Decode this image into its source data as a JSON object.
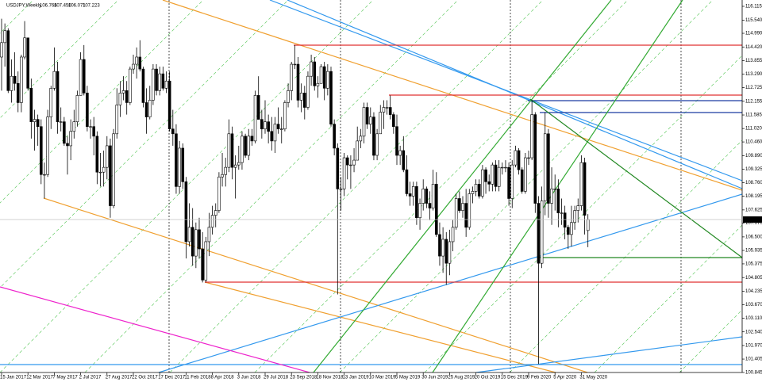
{
  "chart_data": {
    "type": "candlestick",
    "symbol": "USDJPY,Weekly",
    "header_labels": [
      "106.766",
      "107.450",
      "106.071",
      "107.223"
    ],
    "up_color": "#ffffff",
    "down_color": "#000000",
    "ylim": [
      100.845,
      116.379
    ],
    "yticks": [
      116.115,
      {
        "value": 115.54,
        "label": "115.540"
      },
      {
        "value": 114.99,
        "label": "114.990"
      },
      {
        "value": 114.42,
        "label": "114.420"
      },
      113.855,
      {
        "value": 113.29,
        "label": "113.290"
      },
      112.725,
      112.155,
      111.585,
      {
        "value": 111.02,
        "label": "111.020"
      },
      {
        "value": 110.46,
        "label": "110.460"
      },
      {
        "value": 109.89,
        "label": "109.890"
      },
      109.325,
      {
        "value": 108.76,
        "label": "108.760"
      },
      108.195,
      107.625,
      {
        "value": 107.07,
        "label": "107.070"
      },
      {
        "value": 106.5,
        "label": "106.500"
      },
      105.935,
      105.375,
      104.805,
      104.235,
      {
        "value": 103.67,
        "label": "103.670"
      },
      {
        "value": 103.11,
        "label": "103.110"
      },
      {
        "value": 102.54,
        "label": "102.540"
      },
      {
        "value": 101.97,
        "label": "101.970"
      },
      101.405,
      100.845
    ],
    "categories": [
      "15 Jan 2017",
      null,
      null,
      null,
      null,
      null,
      null,
      null,
      "12 Mar 2017",
      null,
      null,
      null,
      null,
      null,
      null,
      null,
      "7 May 2017",
      null,
      null,
      null,
      null,
      null,
      null,
      null,
      "2 Jul 2017",
      null,
      null,
      null,
      null,
      null,
      null,
      null,
      "27 Aug 2017",
      null,
      null,
      null,
      null,
      null,
      null,
      null,
      "22 Oct 2017",
      null,
      null,
      null,
      null,
      null,
      null,
      null,
      "17 Dec 2017",
      null,
      null,
      null,
      null,
      null,
      null,
      null,
      "11 Feb 2018",
      null,
      null,
      null,
      null,
      null,
      null,
      null,
      "8 Apr 2018",
      null,
      null,
      null,
      null,
      null,
      null,
      null,
      "3 Jun 2018",
      null,
      null,
      null,
      null,
      null,
      null,
      null,
      "29 Jul 2018",
      null,
      null,
      null,
      null,
      null,
      null,
      null,
      "23 Sep 2018",
      null,
      null,
      null,
      null,
      null,
      null,
      null,
      "18 Nov 2018",
      null,
      null,
      null,
      null,
      null,
      null,
      null,
      "13 Jan 2019",
      null,
      null,
      null,
      null,
      null,
      null,
      null,
      "10 Mar 2019",
      null,
      null,
      null,
      null,
      null,
      null,
      null,
      "5 May 2019",
      null,
      null,
      null,
      null,
      null,
      null,
      null,
      "30 Jun 2019",
      null,
      null,
      null,
      null,
      null,
      null,
      null,
      "25 Aug 2019",
      null,
      null,
      null,
      null,
      null,
      null,
      null,
      "20 Oct 2019",
      null,
      null,
      null,
      null,
      null,
      null,
      null,
      "15 Dec 2019",
      null,
      null,
      null,
      null,
      null,
      null,
      null,
      "9 Feb 2020",
      null,
      null,
      null,
      null,
      null,
      null,
      null,
      "5 Apr 2020",
      null,
      null,
      null,
      null,
      null,
      null,
      null,
      "31 May 2020",
      null,
      null
    ],
    "open": [
      114.0,
      114.6,
      115.1,
      112.6,
      113.2,
      112.9,
      112.1,
      114.0,
      114.8,
      112.7,
      111.3,
      111.4,
      111.1,
      109.1,
      109.1,
      111.5,
      112.7,
      113.4,
      111.3,
      111.3,
      110.4,
      110.3,
      110.9,
      111.3,
      112.4,
      113.9,
      112.5,
      111.1,
      111.1,
      110.7,
      109.2,
      109.2,
      109.4,
      110.3,
      107.8,
      110.8,
      112.0,
      112.5,
      112.6,
      112.1,
      113.5,
      113.7,
      114.0,
      113.5,
      112.1,
      111.5,
      112.2,
      113.5,
      112.6,
      113.3,
      112.7,
      113.0,
      111.0,
      110.8,
      108.6,
      110.2,
      108.8,
      106.3,
      106.9,
      105.7,
      106.8,
      106.0,
      104.7,
      106.3,
      106.9,
      107.4,
      107.6,
      109.0,
      109.1,
      109.4,
      110.8,
      109.4,
      109.5,
      109.6,
      110.7,
      109.9,
      110.7,
      110.5,
      112.4,
      111.4,
      111.0,
      111.3,
      110.9,
      110.5,
      111.2,
      111.0,
      111.0,
      112.1,
      112.6,
      113.7,
      113.7,
      112.2,
      112.5,
      111.9,
      113.2,
      113.8,
      112.8,
      112.9,
      113.6,
      112.7,
      113.4,
      111.2,
      110.2,
      108.5,
      108.5,
      109.8,
      109.5,
      109.5,
      109.7,
      110.5,
      110.7,
      111.9,
      111.2,
      111.5,
      109.9,
      110.8,
      111.7,
      111.9,
      111.9,
      111.6,
      111.1,
      109.9,
      110.1,
      109.3,
      108.3,
      108.2,
      108.6,
      107.3,
      107.9,
      108.5,
      107.9,
      107.7,
      108.7,
      106.6,
      105.7,
      106.4,
      105.4,
      106.3,
      106.9,
      108.1,
      107.6,
      107.9,
      106.9,
      108.3,
      108.4,
      108.7,
      108.2,
      109.3,
      108.8,
      108.7,
      109.5,
      108.6,
      109.4,
      109.4,
      109.4,
      108.1,
      109.5,
      110.1,
      109.3,
      108.4,
      109.8,
      109.8,
      111.6,
      107.9,
      105.4,
      108.0,
      110.8,
      107.9,
      108.5,
      108.5,
      107.5,
      107.5,
      106.9,
      106.6,
      107.1,
      107.6,
      107.8,
      109.6,
      106.766
    ],
    "high": [
      115.6,
      115.4,
      115.2,
      113.9,
      114.2,
      113.4,
      114.1,
      115.5,
      114.8,
      113.1,
      111.8,
      111.6,
      111.4,
      109.6,
      111.8,
      112.8,
      114.4,
      113.8,
      111.9,
      111.5,
      110.7,
      111.4,
      111.8,
      112.6,
      114.2,
      114.5,
      112.8,
      111.4,
      111.5,
      110.9,
      110.0,
      110.1,
      110.7,
      110.6,
      111.0,
      112.7,
      113.0,
      113.2,
      113.0,
      113.6,
      114.1,
      114.4,
      114.7,
      113.6,
      112.7,
      112.8,
      113.7,
      113.7,
      113.6,
      113.6,
      113.4,
      113.4,
      111.8,
      111.2,
      110.5,
      110.4,
      109.0,
      107.9,
      107.7,
      107.1,
      107.3,
      106.7,
      106.5,
      107.5,
      107.8,
      107.9,
      109.2,
      110.0,
      109.8,
      111.4,
      111.1,
      109.9,
      110.3,
      110.9,
      110.8,
      111.0,
      111.0,
      112.6,
      113.2,
      111.8,
      112.2,
      111.6,
      111.5,
      111.5,
      111.9,
      111.5,
      112.2,
      112.9,
      113.8,
      114.5,
      114.0,
      112.9,
      112.8,
      113.4,
      114.1,
      114.0,
      113.2,
      113.7,
      113.8,
      113.7,
      113.6,
      111.4,
      110.4,
      109.0,
      110.0,
      109.9,
      109.9,
      110.2,
      111.1,
      111.0,
      112.1,
      112.1,
      111.9,
      111.7,
      111.0,
      112.0,
      112.2,
      112.2,
      112.4,
      111.7,
      111.6,
      110.3,
      110.7,
      109.9,
      108.8,
      108.8,
      108.8,
      108.1,
      108.9,
      108.6,
      108.4,
      109.3,
      109.2,
      107.1,
      106.9,
      106.7,
      106.8,
      107.2,
      108.3,
      108.4,
      108.2,
      108.5,
      108.5,
      108.6,
      108.9,
      108.9,
      109.5,
      109.4,
      109.1,
      109.6,
      109.7,
      109.7,
      109.6,
      109.7,
      109.6,
      109.7,
      110.3,
      110.2,
      109.4,
      110.0,
      110.1,
      112.2,
      111.7,
      108.2,
      108.6,
      111.7,
      111.0,
      109.4,
      109.1,
      108.9,
      108.1,
      107.8,
      107.0,
      107.8,
      107.8,
      108.1,
      109.9,
      109.8,
      107.45
    ],
    "low": [
      112.6,
      113.6,
      112.5,
      112.1,
      112.6,
      111.7,
      111.7,
      113.9,
      112.6,
      110.6,
      110.1,
      110.3,
      108.7,
      108.1,
      109.0,
      111.0,
      112.6,
      110.8,
      110.9,
      110.3,
      109.1,
      109.7,
      110.6,
      111.1,
      112.4,
      112.4,
      110.9,
      110.6,
      109.9,
      108.7,
      108.6,
      108.6,
      108.9,
      107.3,
      107.7,
      110.6,
      111.5,
      112.2,
      111.6,
      112.0,
      113.3,
      113.1,
      113.4,
      111.9,
      110.8,
      111.4,
      112.0,
      112.4,
      112.4,
      112.6,
      112.5,
      110.9,
      110.3,
      108.3,
      108.3,
      108.5,
      105.6,
      106.1,
      105.3,
      105.2,
      105.6,
      104.6,
      104.6,
      105.7,
      106.6,
      106.9,
      107.5,
      108.6,
      108.6,
      109.2,
      108.9,
      108.1,
      109.3,
      109.3,
      109.8,
      109.7,
      110.3,
      110.4,
      111.4,
      110.6,
      110.8,
      110.4,
      110.1,
      110.0,
      110.8,
      110.4,
      110.9,
      111.9,
      112.2,
      113.5,
      111.9,
      111.7,
      111.4,
      111.8,
      112.8,
      112.6,
      112.3,
      112.9,
      112.2,
      112.4,
      111.1,
      109.9,
      104.1,
      107.6,
      108.2,
      108.9,
      108.5,
      109.2,
      109.7,
      110.2,
      110.4,
      111.0,
      110.8,
      109.7,
      109.7,
      110.8,
      111.0,
      111.6,
      111.4,
      110.8,
      109.5,
      109.5,
      109.2,
      108.2,
      107.8,
      107.8,
      107.0,
      106.8,
      107.6,
      107.7,
      107.2,
      107.6,
      106.5,
      105.3,
      105.0,
      104.5,
      104.9,
      105.9,
      106.8,
      107.5,
      107.3,
      106.5,
      106.8,
      107.9,
      108.2,
      108.1,
      108.1,
      108.3,
      108.4,
      108.4,
      108.4,
      108.4,
      109.1,
      109.2,
      107.8,
      107.7,
      109.4,
      109.1,
      108.3,
      108.3,
      109.5,
      109.7,
      107.5,
      101.2,
      105.2,
      107.4,
      107.3,
      107.0,
      107.6,
      106.9,
      107.0,
      106.4,
      106.0,
      106.1,
      106.8,
      107.1,
      107.6,
      106.6,
      106.071
    ],
    "close": [
      114.6,
      115.1,
      112.6,
      113.2,
      112.9,
      112.1,
      114.0,
      114.8,
      112.7,
      111.3,
      111.4,
      111.1,
      109.1,
      109.1,
      111.5,
      112.7,
      113.4,
      111.3,
      111.3,
      110.4,
      110.3,
      110.9,
      111.3,
      112.4,
      113.9,
      112.5,
      111.1,
      111.1,
      110.7,
      109.2,
      109.2,
      109.4,
      110.3,
      107.8,
      110.8,
      112.0,
      112.5,
      112.6,
      112.1,
      113.5,
      113.7,
      114.0,
      113.5,
      112.1,
      111.5,
      112.2,
      113.5,
      112.6,
      113.3,
      112.7,
      113.0,
      111.0,
      110.8,
      108.6,
      110.2,
      108.8,
      106.3,
      106.9,
      105.7,
      106.8,
      106.0,
      104.7,
      106.3,
      106.9,
      107.4,
      107.6,
      109.0,
      109.1,
      109.4,
      110.8,
      109.4,
      109.5,
      109.6,
      110.7,
      109.9,
      110.7,
      110.5,
      112.4,
      111.4,
      111.0,
      111.3,
      110.9,
      110.5,
      111.2,
      111.0,
      111.0,
      112.1,
      112.6,
      113.7,
      113.7,
      112.2,
      112.5,
      111.9,
      113.2,
      113.8,
      112.8,
      112.9,
      113.6,
      112.7,
      113.4,
      111.2,
      110.2,
      108.5,
      108.5,
      109.8,
      109.5,
      109.5,
      109.7,
      110.5,
      110.7,
      111.9,
      111.2,
      111.5,
      109.9,
      110.8,
      111.7,
      111.9,
      111.9,
      111.6,
      111.1,
      109.9,
      110.1,
      109.3,
      108.3,
      108.2,
      108.6,
      107.3,
      107.9,
      108.5,
      107.9,
      107.7,
      108.7,
      106.6,
      105.7,
      106.4,
      105.4,
      106.3,
      106.9,
      108.1,
      107.6,
      107.9,
      106.9,
      108.3,
      108.4,
      108.7,
      108.2,
      109.3,
      108.8,
      108.7,
      109.5,
      108.6,
      109.4,
      109.4,
      109.4,
      108.1,
      109.5,
      110.1,
      109.3,
      108.4,
      109.8,
      109.8,
      111.6,
      107.9,
      105.4,
      108.0,
      110.8,
      107.9,
      108.5,
      108.5,
      107.5,
      107.5,
      106.9,
      106.6,
      107.1,
      107.6,
      107.8,
      109.6,
      107.4,
      107.223
    ]
  }
}
